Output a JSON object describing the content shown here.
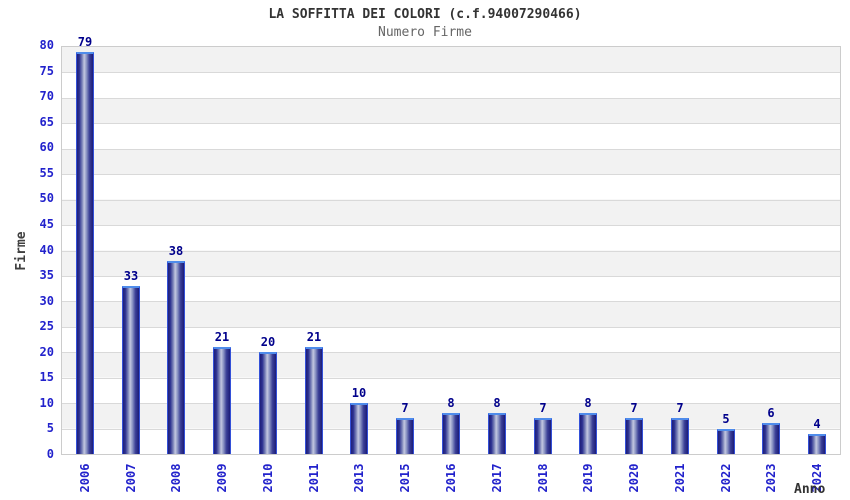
{
  "header": {
    "title": "LA SOFFITTA DEI COLORI (c.f.94007290466)",
    "subtitle": "Numero Firme"
  },
  "chart_data": {
    "type": "bar",
    "title": "LA SOFFITTA DEI COLORI (c.f.94007290466)",
    "subtitle": "Numero Firme",
    "xlabel": "Anno",
    "ylabel": "Firme",
    "ylim": [
      0,
      80
    ],
    "ytick_step": 5,
    "grid": "horizontal-bands-alternating",
    "legend": "none",
    "categories": [
      "2006",
      "2007",
      "2008",
      "2009",
      "2010",
      "2011",
      "2013",
      "2015",
      "2016",
      "2017",
      "2018",
      "2019",
      "2020",
      "2021",
      "2022",
      "2023",
      "2024"
    ],
    "values": [
      79,
      33,
      38,
      21,
      20,
      21,
      10,
      7,
      8,
      8,
      7,
      8,
      7,
      7,
      5,
      6,
      4
    ],
    "colors": {
      "bar_edge": "#3350d8",
      "bar_dark": "#1c1c78",
      "bar_light_center": "#c2c7e0",
      "bar_top_cap": "#4f8ceb",
      "tick_label": "#2222cc",
      "value_label": "#00008b",
      "band_gray": "#f2f2f2",
      "band_white": "#ffffff",
      "grid_line": "#d9d9d9",
      "plot_border": "#cccccc",
      "title": "#333333",
      "subtitle": "#666666",
      "axis_title": "#404040"
    }
  }
}
